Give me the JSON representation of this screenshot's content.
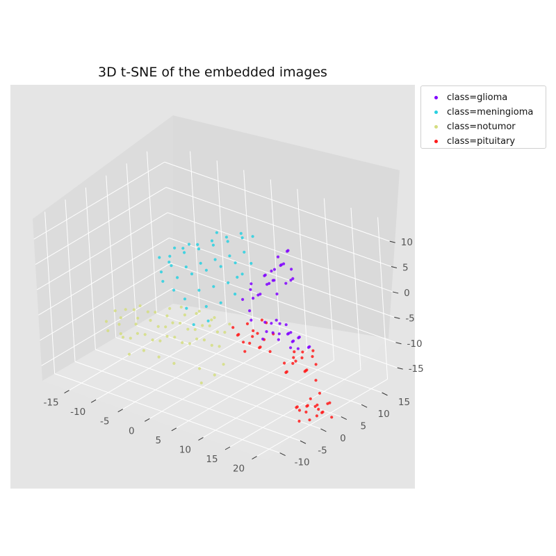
{
  "chart_data": {
    "type": "scatter",
    "projection": "3d",
    "title": "3D t-SNE of the embedded images",
    "xlabel": "",
    "ylabel": "",
    "zlabel": "",
    "xlim": [
      -20,
      22
    ],
    "ylim": [
      -13,
      19
    ],
    "zlim": [
      -18,
      14
    ],
    "x_ticks": [
      -15,
      -10,
      -5,
      0,
      5,
      10,
      15,
      20
    ],
    "y_ticks": [
      -10,
      -5,
      0,
      5,
      10,
      15
    ],
    "z_ticks": [
      -15,
      -10,
      -5,
      0,
      5,
      10
    ],
    "grid": true,
    "legend_position": "outside upper right",
    "series": [
      {
        "name": "class=glioma",
        "color": "#8000ff",
        "points": [
          [
            12,
            3,
            8
          ],
          [
            13,
            4,
            9
          ],
          [
            14,
            3,
            10
          ],
          [
            11,
            5,
            7
          ],
          [
            12,
            6,
            8
          ],
          [
            10,
            4,
            6
          ],
          [
            13,
            2,
            7
          ],
          [
            9,
            5,
            5
          ],
          [
            8,
            3,
            4
          ],
          [
            10,
            2,
            3
          ],
          [
            11,
            3,
            5
          ],
          [
            7,
            4,
            2
          ],
          [
            9,
            2,
            2
          ],
          [
            8,
            5,
            1
          ],
          [
            10,
            6,
            4
          ],
          [
            12,
            4,
            3
          ],
          [
            13,
            5,
            5
          ],
          [
            14,
            5,
            6
          ],
          [
            9,
            6,
            3
          ],
          [
            11,
            6,
            9
          ],
          [
            12,
            7,
            10
          ],
          [
            13,
            6,
            11
          ],
          [
            15,
            4,
            9
          ],
          [
            16,
            3,
            8
          ],
          [
            7,
            2,
            1
          ],
          [
            14,
            1,
            0
          ],
          [
            15,
            2,
            -1
          ],
          [
            16,
            1,
            -2
          ],
          [
            17,
            0,
            -1
          ],
          [
            18,
            1,
            -2
          ],
          [
            15,
            0,
            -3
          ],
          [
            16,
            2,
            -4
          ],
          [
            17,
            1,
            -3
          ],
          [
            19,
            0,
            -1
          ],
          [
            18,
            -1,
            -3
          ],
          [
            14,
            0,
            -2
          ],
          [
            13,
            1,
            -1
          ],
          [
            20,
            1,
            -3
          ],
          [
            16,
            -1,
            -1
          ],
          [
            15,
            3,
            -3
          ],
          [
            11,
            2,
            -2
          ],
          [
            12,
            1,
            -3
          ],
          [
            10,
            0,
            -1
          ],
          [
            9,
            1,
            0
          ],
          [
            17,
            2,
            -5
          ],
          [
            19,
            2,
            -4
          ],
          [
            12,
            0,
            -4
          ],
          [
            13,
            3,
            -2
          ]
        ]
      },
      {
        "name": "class=meningioma",
        "color": "#28d0e0",
        "points": [
          [
            -8,
            4,
            3
          ],
          [
            -6,
            5,
            4
          ],
          [
            -4,
            6,
            5
          ],
          [
            -2,
            7,
            6
          ],
          [
            0,
            8,
            7
          ],
          [
            2,
            9,
            8
          ],
          [
            -7,
            3,
            2
          ],
          [
            -5,
            4,
            2
          ],
          [
            -3,
            5,
            3
          ],
          [
            -1,
            6,
            4
          ],
          [
            1,
            7,
            5
          ],
          [
            3,
            8,
            6
          ],
          [
            -9,
            5,
            1
          ],
          [
            -6,
            3,
            0
          ],
          [
            -4,
            4,
            1
          ],
          [
            -2,
            5,
            2
          ],
          [
            0,
            6,
            3
          ],
          [
            2,
            7,
            4
          ],
          [
            4,
            6,
            3
          ],
          [
            -8,
            2,
            -1
          ],
          [
            -6,
            2,
            -2
          ],
          [
            -7,
            6,
            4
          ],
          [
            -5,
            7,
            5
          ],
          [
            -3,
            8,
            6
          ],
          [
            -1,
            9,
            7
          ],
          [
            1,
            10,
            8
          ],
          [
            -4,
            2,
            -3
          ],
          [
            -2,
            3,
            -1
          ],
          [
            0,
            4,
            0
          ],
          [
            2,
            5,
            1
          ],
          [
            4,
            4,
            0
          ],
          [
            3,
            6,
            2
          ],
          [
            -10,
            4,
            2
          ],
          [
            -9,
            3,
            0
          ],
          [
            5,
            7,
            5
          ],
          [
            -3,
            1,
            -4
          ],
          [
            0,
            2,
            -3
          ],
          [
            2,
            3,
            -2
          ],
          [
            -1,
            0,
            -6
          ],
          [
            1,
            1,
            -5
          ],
          [
            -5,
            5,
            6
          ],
          [
            -2,
            8,
            8
          ],
          [
            4,
            9,
            9
          ],
          [
            -7,
            4,
            5
          ]
        ]
      },
      {
        "name": "class=notumor",
        "color": "#d4dd80",
        "points": [
          [
            -16,
            -2,
            -10
          ],
          [
            -15,
            -3,
            -11
          ],
          [
            -14,
            -1,
            -9
          ],
          [
            -13,
            -2,
            -12
          ],
          [
            -12,
            0,
            -10
          ],
          [
            -11,
            -1,
            -11
          ],
          [
            -10,
            1,
            -9
          ],
          [
            -9,
            0,
            -12
          ],
          [
            -8,
            2,
            -10
          ],
          [
            -7,
            1,
            -11
          ],
          [
            -6,
            3,
            -9
          ],
          [
            -5,
            2,
            -12
          ],
          [
            -4,
            4,
            -10
          ],
          [
            -3,
            3,
            -11
          ],
          [
            -2,
            5,
            -9
          ],
          [
            -1,
            4,
            -12
          ],
          [
            0,
            6,
            -10
          ],
          [
            -15,
            0,
            -13
          ],
          [
            -14,
            1,
            -14
          ],
          [
            -12,
            2,
            -13
          ],
          [
            -10,
            3,
            -14
          ],
          [
            -8,
            4,
            -13
          ],
          [
            -6,
            5,
            -14
          ],
          [
            -4,
            6,
            -13
          ],
          [
            -2,
            7,
            -14
          ],
          [
            -13,
            -1,
            -7
          ],
          [
            -11,
            0,
            -6
          ],
          [
            -9,
            1,
            -7
          ],
          [
            -7,
            2,
            -6
          ],
          [
            -5,
            3,
            -7
          ],
          [
            -3,
            4,
            -6
          ],
          [
            -1,
            5,
            -7
          ],
          [
            1,
            6,
            -8
          ],
          [
            -12,
            3,
            -9
          ],
          [
            -10,
            5,
            -10
          ],
          [
            -8,
            6,
            -8
          ],
          [
            -6,
            7,
            -9
          ],
          [
            -4,
            8,
            -10
          ],
          [
            -16,
            1,
            -12
          ],
          [
            -14,
            3,
            -11
          ],
          [
            -11,
            4,
            -12
          ],
          [
            -9,
            5,
            -11
          ],
          [
            -7,
            6,
            -12
          ],
          [
            -5,
            7,
            -11
          ],
          [
            -3,
            8,
            -12
          ],
          [
            -15,
            -1,
            -8
          ],
          [
            -13,
            1,
            -8
          ],
          [
            -2,
            2,
            -16
          ],
          [
            0,
            3,
            -17
          ],
          [
            1,
            4,
            -15
          ],
          [
            -1,
            1,
            -18
          ],
          [
            -10,
            -1,
            -14
          ],
          [
            -8,
            0,
            -15
          ],
          [
            -6,
            1,
            -16
          ],
          [
            -12,
            -2,
            -15
          ]
        ]
      },
      {
        "name": "class=pituitary",
        "color": "#ff1a1a",
        "points": [
          [
            2,
            9,
            -9
          ],
          [
            3,
            9,
            -10
          ],
          [
            4,
            10,
            -8
          ],
          [
            1,
            8,
            -11
          ],
          [
            3,
            8,
            -12
          ],
          [
            5,
            9,
            -11
          ],
          [
            2,
            10,
            -12
          ],
          [
            4,
            9,
            -13
          ],
          [
            0,
            8,
            -10
          ],
          [
            6,
            10,
            -10
          ],
          [
            1,
            9,
            -13
          ],
          [
            3,
            10,
            -11
          ],
          [
            5,
            8,
            -12
          ],
          [
            2,
            8,
            -14
          ],
          [
            4,
            11,
            -9
          ],
          [
            6,
            9,
            -13
          ],
          [
            0,
            9,
            -12
          ],
          [
            13,
            6,
            -9
          ],
          [
            14,
            5,
            -10
          ],
          [
            12,
            7,
            -11
          ],
          [
            15,
            6,
            -12
          ],
          [
            13,
            8,
            -10
          ],
          [
            11,
            6,
            -12
          ],
          [
            14,
            7,
            -13
          ],
          [
            12,
            5,
            -13
          ],
          [
            16,
            5,
            -11
          ],
          [
            15,
            8,
            -9
          ],
          [
            13,
            4,
            -12
          ],
          [
            11,
            8,
            -13
          ],
          [
            14,
            9,
            -11
          ],
          [
            16,
            7,
            -14
          ],
          [
            12,
            9,
            -12
          ],
          [
            17,
            6,
            -10
          ],
          [
            18,
            2,
            -16
          ],
          [
            19,
            1,
            -15
          ],
          [
            20,
            3,
            -17
          ],
          [
            18,
            0,
            -18
          ],
          [
            21,
            2,
            -16
          ],
          [
            19,
            4,
            -14
          ],
          [
            20,
            0,
            -17
          ],
          [
            17,
            3,
            -18
          ],
          [
            21,
            1,
            -15
          ],
          [
            19,
            3,
            -18
          ],
          [
            18,
            4,
            -17
          ],
          [
            22,
            2,
            -14
          ],
          [
            20,
            5,
            -16
          ],
          [
            17,
            1,
            -16
          ],
          [
            19,
            -1,
            -15
          ],
          [
            21,
            4,
            -18
          ],
          [
            18,
            3,
            -15
          ],
          [
            20,
            2,
            -15
          ],
          [
            16,
            2,
            -17
          ]
        ]
      }
    ]
  }
}
